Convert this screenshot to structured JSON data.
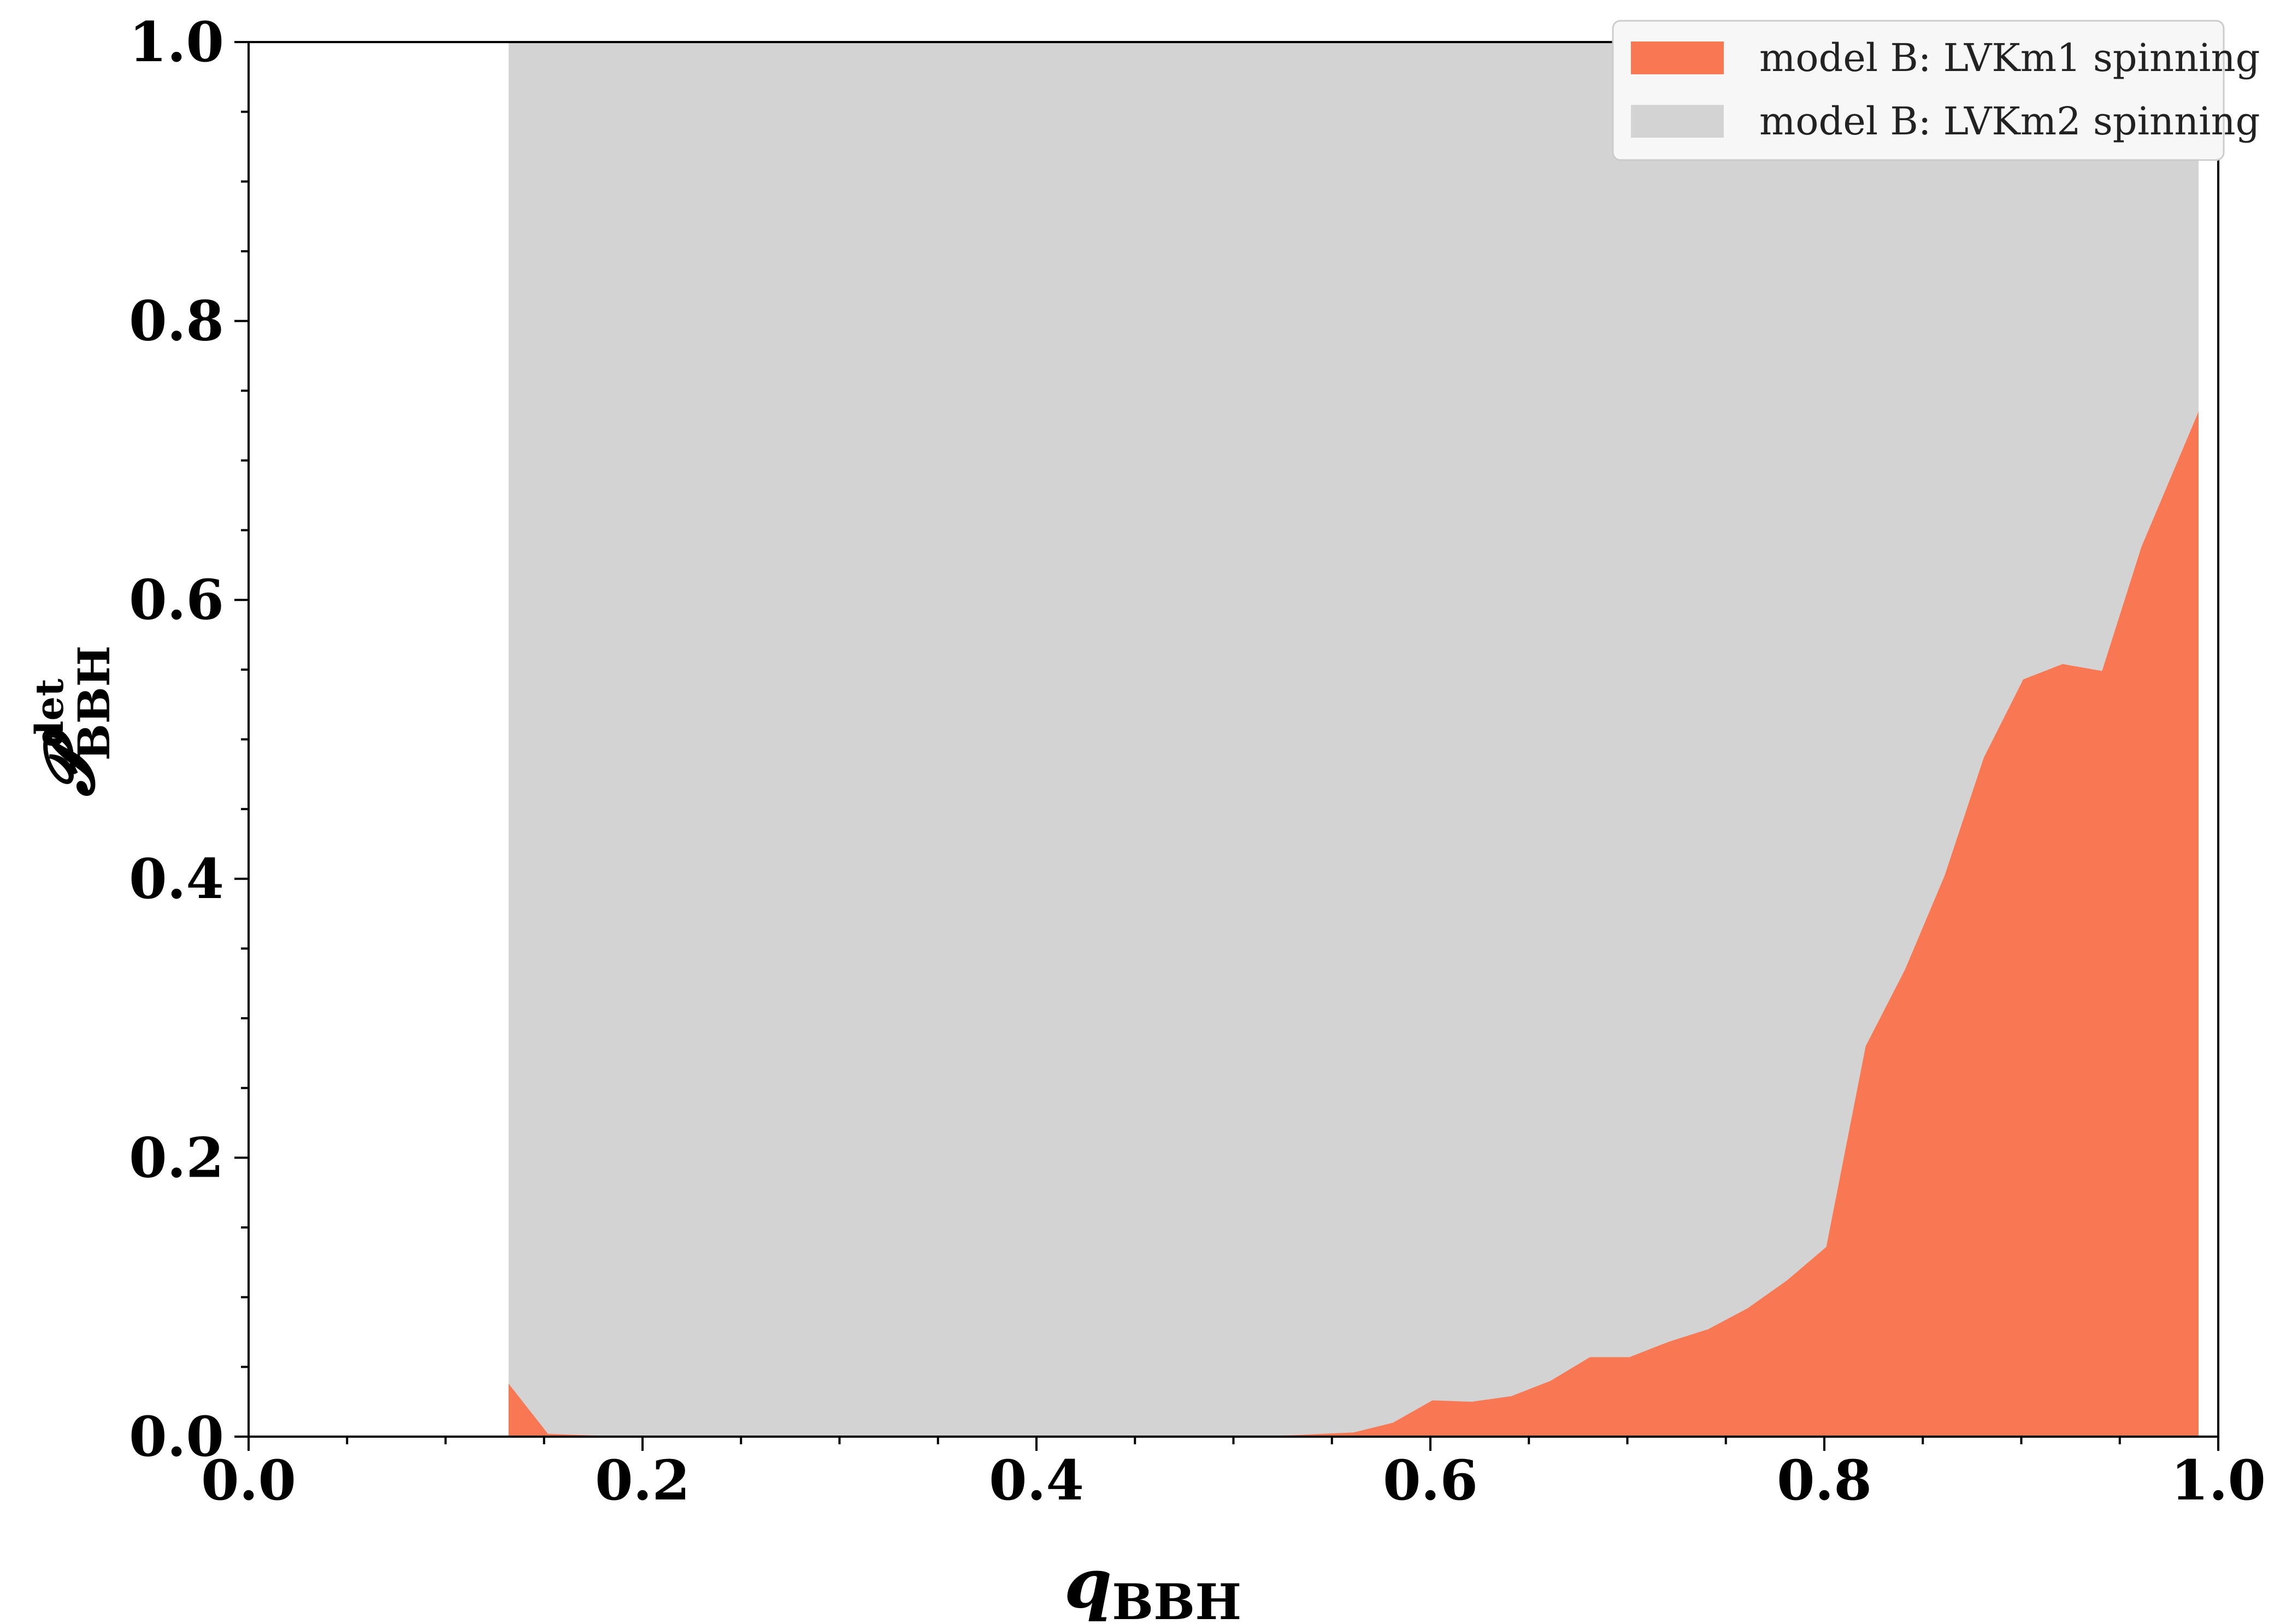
{
  "chart_data": {
    "type": "area",
    "xlabel": "q",
    "xlabel_sub": "BBH",
    "ylabel": "𝓟",
    "ylabel_sup": "det",
    "ylabel_sub": "BBH",
    "xlim": [
      0.0,
      1.0
    ],
    "ylim": [
      0.0,
      1.0
    ],
    "x_ticks": [
      "0.0",
      "0.2",
      "0.4",
      "0.6",
      "0.8",
      "1.0"
    ],
    "y_ticks": [
      "0.0",
      "0.2",
      "0.4",
      "0.6",
      "0.8",
      "1.0"
    ],
    "grid": false,
    "legend_position": "top-right",
    "series": [
      {
        "name": "model B: LVKm2 spinning",
        "color": "#d3d3d3",
        "x": [
          0.132,
          0.99
        ],
        "y": [
          1.0,
          1.0
        ]
      },
      {
        "name": "model B: LVKm1 spinning",
        "color": "#f77852",
        "x": [
          0.132,
          0.152,
          0.172,
          0.2,
          0.25,
          0.3,
          0.35,
          0.4,
          0.45,
          0.5,
          0.53,
          0.561,
          0.581,
          0.601,
          0.621,
          0.641,
          0.661,
          0.681,
          0.701,
          0.721,
          0.741,
          0.761,
          0.781,
          0.801,
          0.821,
          0.841,
          0.861,
          0.881,
          0.901,
          0.921,
          0.941,
          0.961,
          0.99
        ],
        "y": [
          0.038,
          0.002,
          0.001,
          0.0,
          0.0,
          0.0,
          0.0,
          0.0,
          0.0,
          0.0,
          0.001,
          0.003,
          0.01,
          0.026,
          0.025,
          0.029,
          0.04,
          0.057,
          0.057,
          0.068,
          0.077,
          0.092,
          0.112,
          0.136,
          0.28,
          0.335,
          0.402,
          0.487,
          0.543,
          0.554,
          0.549,
          0.638,
          0.735
        ]
      }
    ]
  }
}
